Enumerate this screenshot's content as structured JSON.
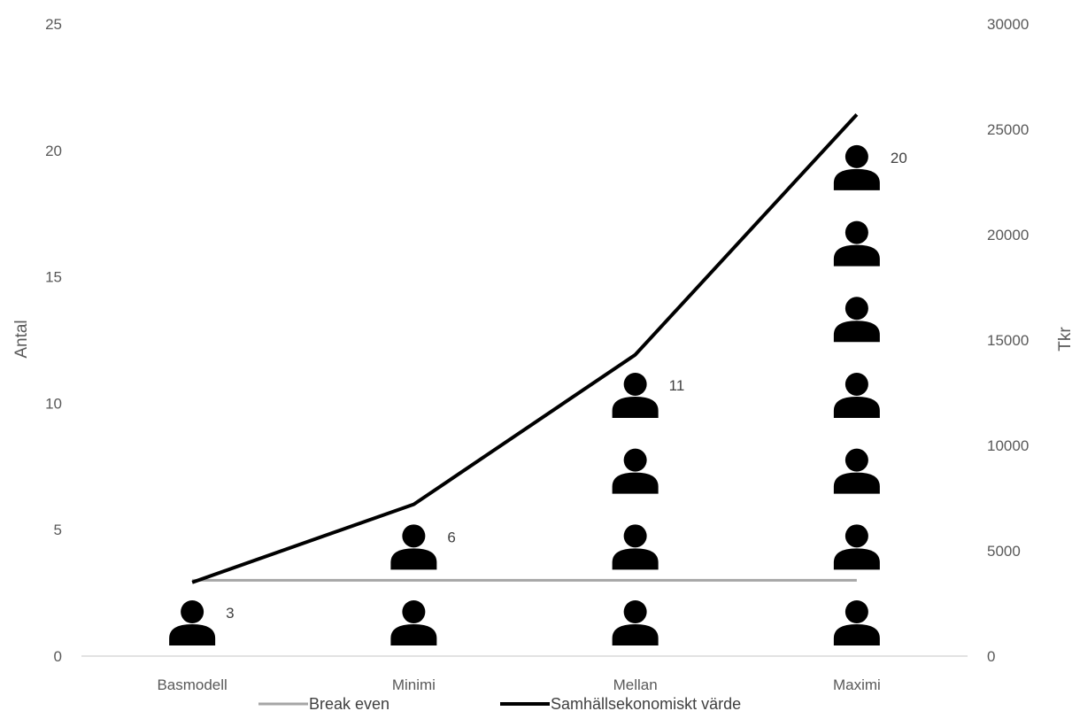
{
  "chart_data": {
    "type": "bar",
    "pictograph": true,
    "icon": "person-icon",
    "categories": [
      "Basmodell",
      "Minimi",
      "Mellan",
      "Maximi"
    ],
    "ylabel": "Antal",
    "ylabel_right": "Tkr",
    "ylim": [
      0,
      25
    ],
    "ylim_right": [
      0,
      30000
    ],
    "yticks": [
      0,
      5,
      10,
      15,
      20,
      25
    ],
    "yticks_right": [
      0,
      5000,
      10000,
      15000,
      20000,
      25000,
      30000
    ],
    "grid": false,
    "legend_position": "bottom",
    "series": [
      {
        "name": "",
        "kind": "pictograph",
        "axis": "left",
        "values": [
          3,
          6,
          11,
          20
        ],
        "data_labels": [
          "3",
          "6",
          "11",
          "20"
        ],
        "color": "#000000"
      },
      {
        "name": "Break even",
        "kind": "line",
        "axis": "left",
        "values": [
          3.0,
          3.0,
          3.0,
          3.0
        ],
        "color": "#a6a6a6"
      },
      {
        "name": "Samhällsekonomiskt värde",
        "kind": "line",
        "axis": "right",
        "values": [
          3500,
          7200,
          14300,
          25700
        ],
        "color": "#000000"
      }
    ]
  }
}
